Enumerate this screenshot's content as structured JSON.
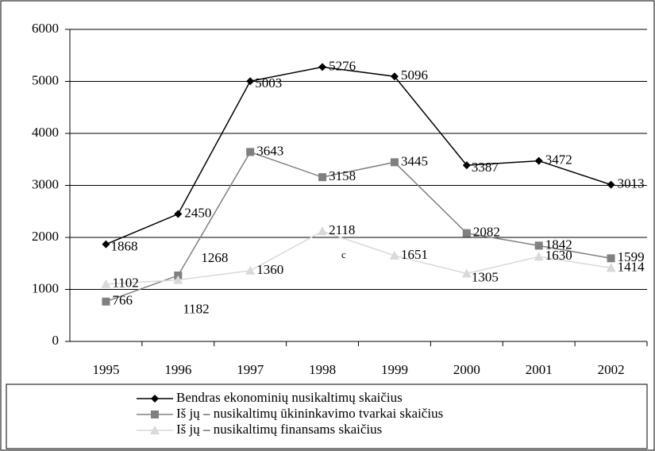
{
  "chart_data": {
    "type": "line",
    "categories": [
      "1995",
      "1996",
      "1997",
      "1998",
      "1999",
      "2000",
      "2001",
      "2002"
    ],
    "series": [
      {
        "name": "Bendras ekonominių nusikaltimų skaičius",
        "color": "#000000",
        "marker": "diamond",
        "values": [
          1868,
          2450,
          5003,
          5276,
          5096,
          3387,
          3472,
          3013
        ]
      },
      {
        "name": "Iš jų – nusikaltimų ūkininkavimo tvarkai skaičius",
        "color": "#808080",
        "marker": "square",
        "values": [
          766,
          1268,
          3643,
          3158,
          3445,
          2082,
          1842,
          1599
        ]
      },
      {
        "name": "Iš jų – nusikaltimų finansams skaičius",
        "color": "#d9d9d9",
        "marker": "triangle",
        "values": [
          1102,
          1182,
          1360,
          2118,
          1651,
          1305,
          1630,
          1414
        ]
      }
    ],
    "annotations": [
      "c"
    ],
    "ylim": [
      0,
      6000
    ],
    "yticks": [
      0,
      1000,
      2000,
      3000,
      4000,
      5000,
      6000
    ],
    "grid": true,
    "legend": "bottom"
  }
}
